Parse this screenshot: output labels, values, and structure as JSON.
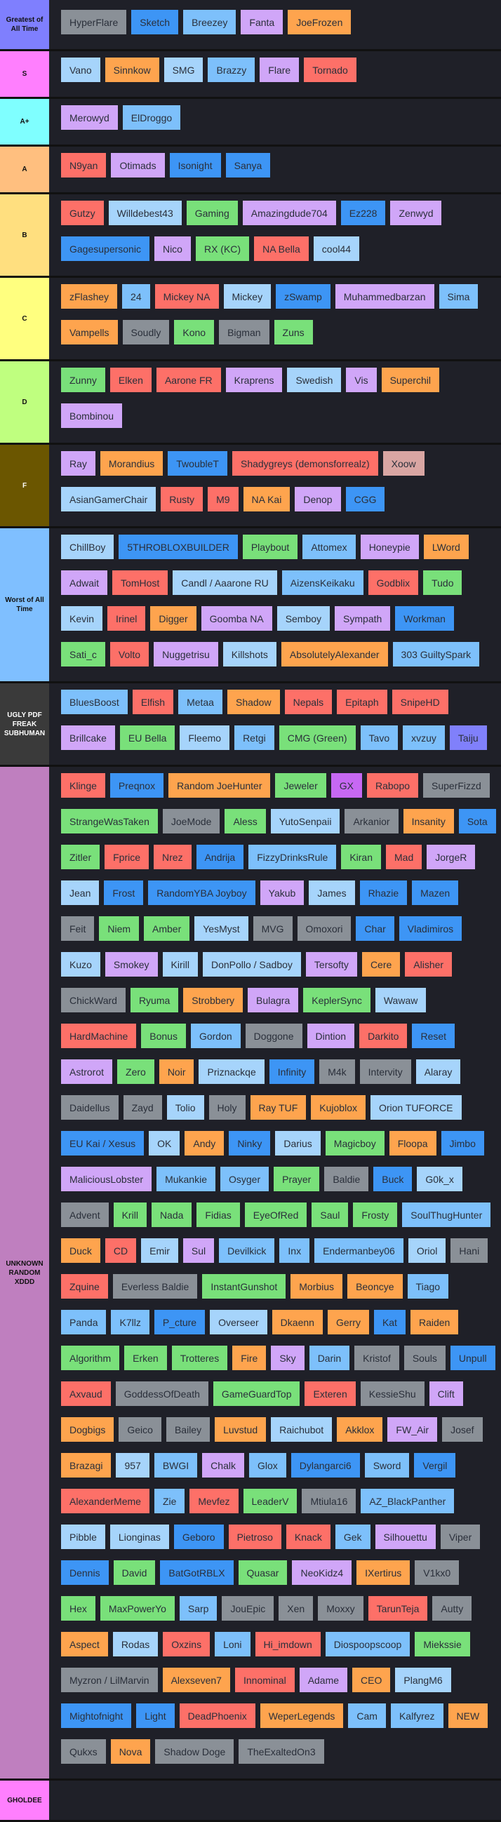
{
  "palette": {
    "gray": "#8a9097",
    "blue": "#3d95f5",
    "lightblue": "#7dc0fb",
    "paleblue": "#a6d4fb",
    "lavender": "#d0a6f8",
    "orange": "#fea44e",
    "red": "#fd7068",
    "green": "#79e07a",
    "violet": "#8080fb",
    "magenta": "#c768f3",
    "rose": "#d9a6a3"
  },
  "tiers": [
    {
      "label": "Greatest of All Time",
      "color": "#7f7ffe",
      "items": [
        [
          "HyperFlare",
          "gray"
        ],
        [
          "Sketch",
          "blue"
        ],
        [
          "Breezey",
          "lightblue"
        ],
        [
          "Fanta",
          "lavender"
        ],
        [
          "JoeFrozen",
          "orange"
        ]
      ]
    },
    {
      "label": "S",
      "color": "#ff7ffe",
      "items": [
        [
          "Vano",
          "paleblue"
        ],
        [
          "Sinnkow",
          "orange"
        ],
        [
          "SMG",
          "paleblue"
        ],
        [
          "Brazzy",
          "lightblue"
        ],
        [
          "Flare",
          "lavender"
        ],
        [
          "Tornado",
          "red"
        ]
      ]
    },
    {
      "label": "A+",
      "color": "#7fffff",
      "items": [
        [
          "Merowyd",
          "lavender"
        ],
        [
          "ElDroggo",
          "lightblue"
        ]
      ]
    },
    {
      "label": "A",
      "color": "#ffbf7f",
      "items": [
        [
          "N9yan",
          "red"
        ],
        [
          "Otimads",
          "lavender"
        ],
        [
          "Isonight",
          "blue"
        ],
        [
          "Sanya",
          "blue"
        ]
      ]
    },
    {
      "label": "B",
      "color": "#ffdf7f",
      "items": [
        [
          "Gutzy",
          "red"
        ],
        [
          "Willdebest43",
          "paleblue"
        ],
        [
          "Gaming",
          "green"
        ],
        [
          "Amazingdude704",
          "lavender"
        ],
        [
          "Ez228",
          "blue"
        ],
        [
          "Zenwyd",
          "lavender"
        ],
        [
          "Gagesupersonic",
          "blue"
        ],
        [
          "Nico",
          "lavender"
        ],
        [
          "RX (KC)",
          "green"
        ],
        [
          "NA Bella",
          "red"
        ],
        [
          "cool44",
          "paleblue"
        ]
      ]
    },
    {
      "label": "C",
      "color": "#ffff7f",
      "items": [
        [
          "zFlashey",
          "orange"
        ],
        [
          "24",
          "lightblue"
        ],
        [
          "Mickey NA",
          "red"
        ],
        [
          "Mickey",
          "paleblue"
        ],
        [
          "zSwamp",
          "blue"
        ],
        [
          "Muhammedbarzan",
          "lavender"
        ],
        [
          "Sima",
          "lightblue"
        ],
        [
          "Vampells",
          "orange"
        ],
        [
          "Soudly",
          "gray"
        ],
        [
          "Kono",
          "green"
        ],
        [
          "Bigman",
          "gray"
        ],
        [
          "Zuns",
          "green"
        ]
      ]
    },
    {
      "label": "D",
      "color": "#bfff7f",
      "items": [
        [
          "Zunny",
          "green"
        ],
        [
          "Elken",
          "red"
        ],
        [
          "Aarone FR",
          "red"
        ],
        [
          "Kraprens",
          "lavender"
        ],
        [
          "Swedish",
          "paleblue"
        ],
        [
          "Vis",
          "lavender"
        ],
        [
          "Superchil",
          "orange"
        ],
        [
          "Bombinou",
          "lavender"
        ]
      ]
    },
    {
      "label": "F",
      "color": "#6b5600",
      "text_color": "#ffffff",
      "items": [
        [
          "Ray",
          "lavender"
        ],
        [
          "Morandius",
          "orange"
        ],
        [
          "TwoubleT",
          "blue"
        ],
        [
          "Shadygreys (demonsforrealz)",
          "red"
        ],
        [
          "Xoow",
          "rose"
        ],
        [
          "AsianGamerChair",
          "paleblue"
        ],
        [
          "Rusty",
          "red"
        ],
        [
          "M9",
          "red"
        ],
        [
          "NA Kai",
          "orange"
        ],
        [
          "Denop",
          "lavender"
        ],
        [
          "CGG",
          "blue"
        ]
      ]
    },
    {
      "label": "Worst of All Time",
      "color": "#7fbfff",
      "items": [
        [
          "ChillBoy",
          "paleblue"
        ],
        [
          "5THROBLOXBUILDER",
          "blue"
        ],
        [
          "Playbout",
          "green"
        ],
        [
          "Attomex",
          "lightblue"
        ],
        [
          "Honeypie",
          "lavender"
        ],
        [
          "LWord",
          "orange"
        ],
        [
          "Adwait",
          "lavender"
        ],
        [
          "TomHost",
          "red"
        ],
        [
          "Candl / Aaarone RU",
          "paleblue"
        ],
        [
          "AizensKeikaku",
          "lightblue"
        ],
        [
          "Godblix",
          "red"
        ],
        [
          "Tudo",
          "green"
        ],
        [
          "Kevin",
          "paleblue"
        ],
        [
          "Irinel",
          "red"
        ],
        [
          "Digger",
          "orange"
        ],
        [
          "Goomba NA",
          "lavender"
        ],
        [
          "Semboy",
          "paleblue"
        ],
        [
          "Sympath",
          "lavender"
        ],
        [
          "Workman",
          "blue"
        ],
        [
          "Sati_c",
          "green"
        ],
        [
          "Volto",
          "red"
        ],
        [
          "Nuggetrisu",
          "lavender"
        ],
        [
          "Killshots",
          "paleblue"
        ],
        [
          "AbsolutelyAlexander",
          "orange"
        ],
        [
          "303 GuiltySpark",
          "lightblue"
        ]
      ]
    },
    {
      "label": "UGLY PDF FREAK SUBHUMAN",
      "color": "#3a3a3a",
      "text_color": "#ffffff",
      "items": [
        [
          "BluesBoost",
          "lightblue"
        ],
        [
          "Elfish",
          "red"
        ],
        [
          "Metaa",
          "lightblue"
        ],
        [
          "Shadow",
          "orange"
        ],
        [
          "Nepals",
          "red"
        ],
        [
          "Epitaph",
          "red"
        ],
        [
          "SnipeHD",
          "red"
        ],
        [
          "Brillcake",
          "lavender"
        ],
        [
          "EU Bella",
          "green"
        ],
        [
          "Fleemo",
          "paleblue"
        ],
        [
          "Retgi",
          "lightblue"
        ],
        [
          "CMG (Green)",
          "green"
        ],
        [
          "Tavo",
          "lightblue"
        ],
        [
          "xvzuy",
          "lightblue"
        ],
        [
          "Taiju",
          "violet"
        ]
      ]
    },
    {
      "label": "UNKNOWN RANDOM XDDD",
      "color": "#bf7fbf",
      "items": [
        [
          "Klinge",
          "red"
        ],
        [
          "Preqnox",
          "blue"
        ],
        [
          "Random JoeHunter",
          "orange"
        ],
        [
          "Jeweler",
          "green"
        ],
        [
          "GX",
          "magenta"
        ],
        [
          "Rabopo",
          "red"
        ],
        [
          "SuperFizzd",
          "gray"
        ],
        [
          "StrangeWasTaken",
          "green"
        ],
        [
          "JoeMode",
          "gray"
        ],
        [
          "Aless",
          "green"
        ],
        [
          "YutoSenpaii",
          "paleblue"
        ],
        [
          "Arkanior",
          "gray"
        ],
        [
          "Insanity",
          "orange"
        ],
        [
          "Sota",
          "blue"
        ],
        [
          "Zitler",
          "green"
        ],
        [
          "Fprice",
          "red"
        ],
        [
          "Nrez",
          "red"
        ],
        [
          "Andrija",
          "blue"
        ],
        [
          "FizzyDrinksRule",
          "lightblue"
        ],
        [
          "Kiran",
          "green"
        ],
        [
          "Mad",
          "red"
        ],
        [
          "JorgeR",
          "lavender"
        ],
        [
          "Jean",
          "paleblue"
        ],
        [
          "Frost",
          "blue"
        ],
        [
          "RandomYBA Joyboy",
          "blue"
        ],
        [
          "Yakub",
          "lavender"
        ],
        [
          "James",
          "paleblue"
        ],
        [
          "Rhazie",
          "blue"
        ],
        [
          "Mazen",
          "blue"
        ],
        [
          "Feit",
          "gray"
        ],
        [
          "Niem",
          "green"
        ],
        [
          "Amber",
          "green"
        ],
        [
          "YesMyst",
          "paleblue"
        ],
        [
          "MVG",
          "gray"
        ],
        [
          "Omoxori",
          "gray"
        ],
        [
          "Char",
          "blue"
        ],
        [
          "Vladimiros",
          "blue"
        ],
        [
          "Kuzo",
          "paleblue"
        ],
        [
          "Smokey",
          "lavender"
        ],
        [
          "Kirill",
          "paleblue"
        ],
        [
          "DonPollo / Sadboy",
          "paleblue"
        ],
        [
          "Tersofty",
          "lavender"
        ],
        [
          "Cere",
          "orange"
        ],
        [
          "Alisher",
          "red"
        ],
        [
          "ChickWard",
          "gray"
        ],
        [
          "Ryuma",
          "green"
        ],
        [
          "Strobbery",
          "orange"
        ],
        [
          "Bulagra",
          "lavender"
        ],
        [
          "KeplerSync",
          "green"
        ],
        [
          "Wawaw",
          "paleblue"
        ],
        [
          "HardMachine",
          "red"
        ],
        [
          "Bonus",
          "green"
        ],
        [
          "Gordon",
          "lightblue"
        ],
        [
          "Doggone",
          "gray"
        ],
        [
          "Dintion",
          "lavender"
        ],
        [
          "Darkito",
          "red"
        ],
        [
          "Reset",
          "blue"
        ],
        [
          "Astrorot",
          "lavender"
        ],
        [
          "Zero",
          "green"
        ],
        [
          "Noir",
          "orange"
        ],
        [
          "Priznackqe",
          "paleblue"
        ],
        [
          "Infinity",
          "blue"
        ],
        [
          "M4k",
          "gray"
        ],
        [
          "Intervity",
          "gray"
        ],
        [
          "Alaray",
          "paleblue"
        ],
        [
          "Daidellus",
          "gray"
        ],
        [
          "Zayd",
          "gray"
        ],
        [
          "Tolio",
          "paleblue"
        ],
        [
          "Holy",
          "gray"
        ],
        [
          "Ray TUF",
          "orange"
        ],
        [
          "Kujoblox",
          "orange"
        ],
        [
          "Orion TUFORCE",
          "paleblue"
        ],
        [
          "EU Kai / Xesus",
          "blue"
        ],
        [
          "OK",
          "paleblue"
        ],
        [
          "Andy",
          "orange"
        ],
        [
          "Ninky",
          "blue"
        ],
        [
          "Darius",
          "paleblue"
        ],
        [
          "Magicboy",
          "green"
        ],
        [
          "Floopa",
          "orange"
        ],
        [
          "Jimbo",
          "blue"
        ],
        [
          "MaliciousLobster",
          "lavender"
        ],
        [
          "Mukankie",
          "lightblue"
        ],
        [
          "Osyger",
          "lightblue"
        ],
        [
          "Prayer",
          "green"
        ],
        [
          "Baldie",
          "gray"
        ],
        [
          "Buck",
          "blue"
        ],
        [
          "G0k_x",
          "paleblue"
        ],
        [
          "Advent",
          "gray"
        ],
        [
          "Krill",
          "green"
        ],
        [
          "Nada",
          "green"
        ],
        [
          "Fidias",
          "green"
        ],
        [
          "EyeOfRed",
          "green"
        ],
        [
          "Saul",
          "green"
        ],
        [
          "Frosty",
          "green"
        ],
        [
          "SoulThugHunter",
          "lightblue"
        ],
        [
          "Duck",
          "orange"
        ],
        [
          "CD",
          "red"
        ],
        [
          "Emir",
          "paleblue"
        ],
        [
          "Sul",
          "lavender"
        ],
        [
          "Devilkick",
          "lightblue"
        ],
        [
          "Inx",
          "lightblue"
        ],
        [
          "Endermanbey06",
          "lightblue"
        ],
        [
          "Oriol",
          "paleblue"
        ],
        [
          "Hani",
          "gray"
        ],
        [
          "Zquine",
          "red"
        ],
        [
          "Everless Baldie",
          "gray"
        ],
        [
          "InstantGunshot",
          "green"
        ],
        [
          "Morbius",
          "orange"
        ],
        [
          "Beoncye",
          "orange"
        ],
        [
          "Tiago",
          "lightblue"
        ],
        [
          "Panda",
          "lightblue"
        ],
        [
          "K7llz",
          "lightblue"
        ],
        [
          "P_cture",
          "blue"
        ],
        [
          "Overseer",
          "paleblue"
        ],
        [
          "Dkaenn",
          "orange"
        ],
        [
          "Gerry",
          "orange"
        ],
        [
          "Kat",
          "blue"
        ],
        [
          "Raiden",
          "orange"
        ],
        [
          "Algorithm",
          "green"
        ],
        [
          "Erken",
          "green"
        ],
        [
          "Trotteres",
          "green"
        ],
        [
          "Fire",
          "orange"
        ],
        [
          "Sky",
          "lavender"
        ],
        [
          "Darin",
          "lightblue"
        ],
        [
          "Kristof",
          "gray"
        ],
        [
          "Souls",
          "gray"
        ],
        [
          "Unpull",
          "blue"
        ],
        [
          "Axvaud",
          "red"
        ],
        [
          "GoddessOfDeath",
          "gray"
        ],
        [
          "GameGuardTop",
          "green"
        ],
        [
          "Exteren",
          "red"
        ],
        [
          "KessieShu",
          "gray"
        ],
        [
          "Clift",
          "lavender"
        ],
        [
          "Dogbigs",
          "orange"
        ],
        [
          "Geico",
          "gray"
        ],
        [
          "Bailey",
          "gray"
        ],
        [
          "Luvstud",
          "orange"
        ],
        [
          "Raichubot",
          "paleblue"
        ],
        [
          "Akklox",
          "orange"
        ],
        [
          "FW_Air",
          "lavender"
        ],
        [
          "Josef",
          "gray"
        ],
        [
          "Brazagi",
          "orange"
        ],
        [
          "957",
          "paleblue"
        ],
        [
          "BWGI",
          "lightblue"
        ],
        [
          "Chalk",
          "lavender"
        ],
        [
          "Glox",
          "lightblue"
        ],
        [
          "Dylangarci6",
          "blue"
        ],
        [
          "Sword",
          "lightblue"
        ],
        [
          "Vergil",
          "blue"
        ],
        [
          "AlexanderMeme",
          "red"
        ],
        [
          "Zie",
          "lightblue"
        ],
        [
          "Mevfez",
          "red"
        ],
        [
          "LeaderV",
          "green"
        ],
        [
          "Mtiula16",
          "gray"
        ],
        [
          "AZ_BlackPanther",
          "lightblue"
        ],
        [
          "Pibble",
          "paleblue"
        ],
        [
          "Lionginas",
          "paleblue"
        ],
        [
          "Geboro",
          "blue"
        ],
        [
          "Pietroso",
          "red"
        ],
        [
          "Knack",
          "red"
        ],
        [
          "Gek",
          "lightblue"
        ],
        [
          "Silhouettu",
          "lavender"
        ],
        [
          "Viper",
          "gray"
        ],
        [
          "Dennis",
          "blue"
        ],
        [
          "David",
          "green"
        ],
        [
          "BatGotRBLX",
          "blue"
        ],
        [
          "Quasar",
          "green"
        ],
        [
          "NeoKidz4",
          "lavender"
        ],
        [
          "IXertirus",
          "orange"
        ],
        [
          "V1kx0",
          "gray"
        ],
        [
          "Hex",
          "green"
        ],
        [
          "MaxPowerYo",
          "green"
        ],
        [
          "Sarp",
          "lightblue"
        ],
        [
          "JouEpic",
          "gray"
        ],
        [
          "Xen",
          "gray"
        ],
        [
          "Moxxy",
          "gray"
        ],
        [
          "TarunTeja",
          "red"
        ],
        [
          "Autty",
          "gray"
        ],
        [
          "Aspect",
          "orange"
        ],
        [
          "Rodas",
          "paleblue"
        ],
        [
          "Oxzins",
          "red"
        ],
        [
          "Loni",
          "lightblue"
        ],
        [
          "Hi_imdown",
          "red"
        ],
        [
          "Diospoopscoop",
          "lightblue"
        ],
        [
          "Miekssie",
          "green"
        ],
        [
          "Myzron / LilMarvin",
          "gray"
        ],
        [
          "Alexseven7",
          "orange"
        ],
        [
          "Innominal",
          "red"
        ],
        [
          "Adame",
          "lavender"
        ],
        [
          "CEO",
          "orange"
        ],
        [
          "PlangM6",
          "paleblue"
        ],
        [
          "Mightofnight",
          "blue"
        ],
        [
          "Light",
          "blue"
        ],
        [
          "DeadPhoenix",
          "red"
        ],
        [
          "WeperLegends",
          "orange"
        ],
        [
          "Cam",
          "lightblue"
        ],
        [
          "Kalfyrez",
          "lightblue"
        ],
        [
          "NEW",
          "orange"
        ],
        [
          "Qukxs",
          "gray"
        ],
        [
          "Nova",
          "orange"
        ],
        [
          "Shadow Doge",
          "gray"
        ],
        [
          "TheExaltedOn3",
          "gray"
        ]
      ]
    },
    {
      "label": "GHOLDEE",
      "color": "#ff7ffe",
      "items": []
    }
  ]
}
